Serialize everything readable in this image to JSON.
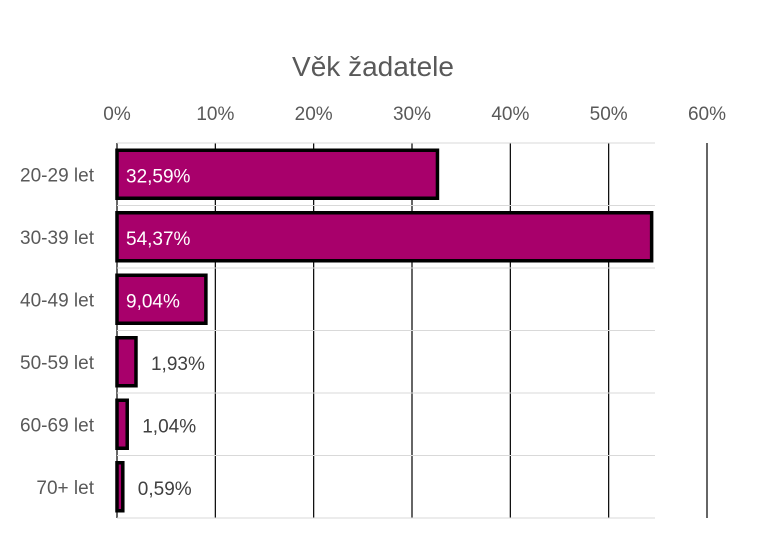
{
  "chart_data": {
    "type": "bar",
    "orientation": "horizontal",
    "title": "Věk žadatele",
    "categories": [
      "20-29 let",
      "30-39 let",
      "40-49 let",
      "50-59 let",
      "60-69 let",
      "70+ let"
    ],
    "values": [
      32.59,
      54.37,
      9.04,
      1.93,
      1.04,
      0.59
    ],
    "value_labels": [
      "32,59%",
      "54,37%",
      "9,04%",
      "1,93%",
      "1,04%",
      "0,59%"
    ],
    "xlim": [
      0,
      60
    ],
    "xticks": [
      0,
      10,
      20,
      30,
      40,
      50,
      60
    ],
    "xtick_labels": [
      "0%",
      "10%",
      "20%",
      "30%",
      "40%",
      "50%",
      "60%"
    ],
    "axis_position": "top",
    "grid": true,
    "legend": "none",
    "colors": {
      "bar": "#A8006B",
      "bar_border": "#000000",
      "grid": "#000000",
      "text": "#595959"
    }
  }
}
